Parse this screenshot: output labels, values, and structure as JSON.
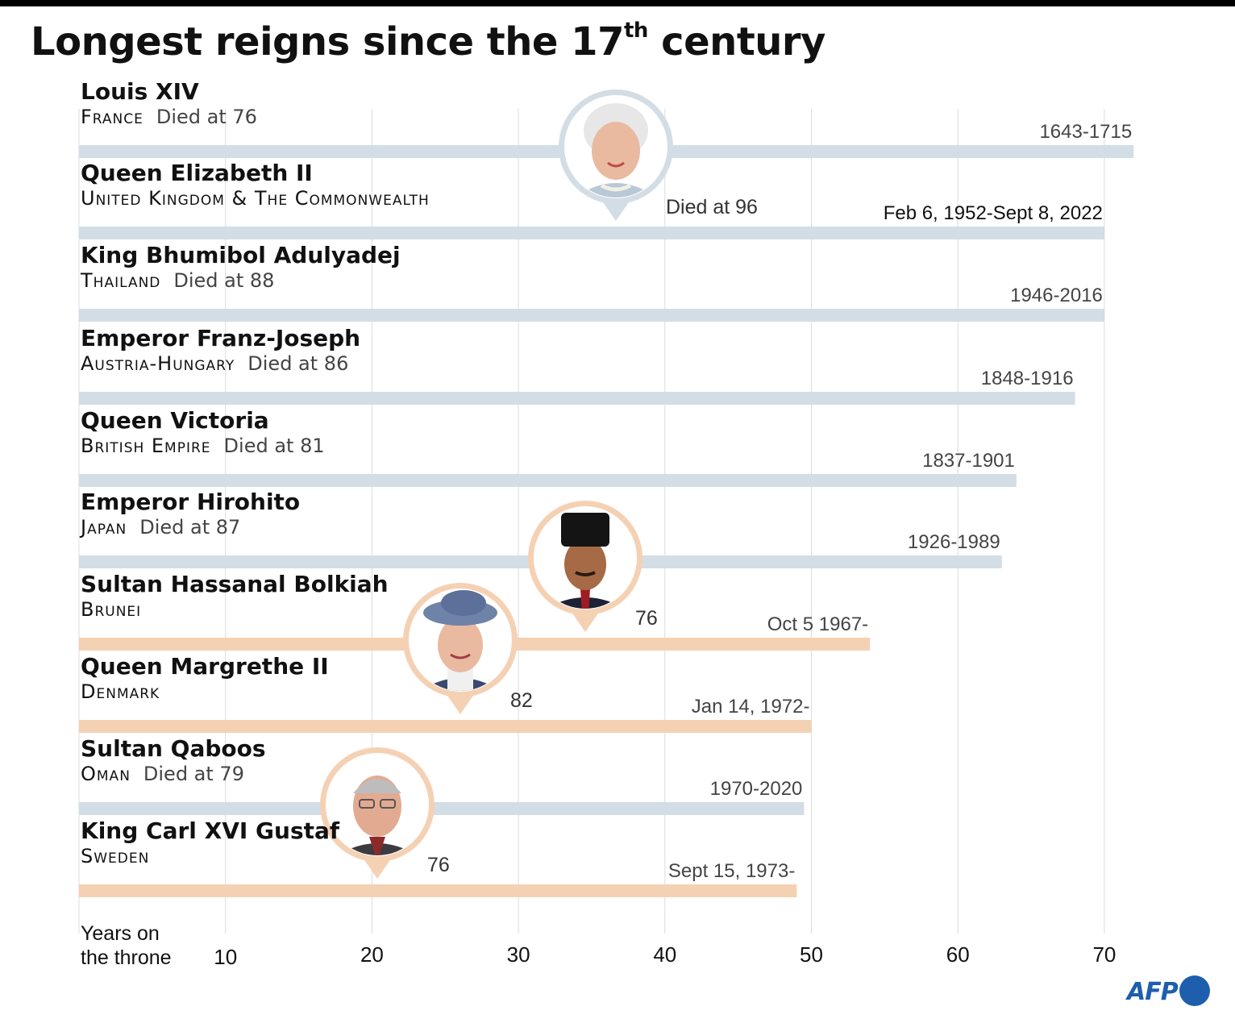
{
  "title": {
    "main": "Longest reigns since the 17",
    "sup": "th",
    "rest": " century"
  },
  "axis": {
    "label_line1": "Years on",
    "label_line2": "the throne"
  },
  "logo": "AFP",
  "colors": {
    "past": "#d3dde5",
    "current": "#f5d1b4",
    "grid": "#dcdcdc"
  },
  "chart_data": {
    "type": "bar",
    "orientation": "horizontal",
    "title": "Longest reigns since the 17th century",
    "xlabel": "Years on the throne",
    "xlim": [
      0,
      72
    ],
    "xticks": [
      10,
      20,
      30,
      40,
      50,
      60,
      70
    ],
    "grid": true,
    "bars": [
      {
        "name": "Louis XIV",
        "country": "France",
        "died": "Died at 76",
        "period": "1643-1715",
        "years": 72,
        "status": "past"
      },
      {
        "name": "Queen Elizabeth II",
        "country": "United Kingdom & The Commonwealth",
        "died": "",
        "period": "Feb 6, 1952-Sept 8, 2022",
        "years": 70,
        "status": "past",
        "portrait": {
          "caption": "Died at 96",
          "style": "elizabeth"
        }
      },
      {
        "name": "King Bhumibol Adulyadej",
        "country": "Thailand",
        "died": "Died at 88",
        "period": "1946-2016",
        "years": 70,
        "status": "past"
      },
      {
        "name": "Emperor Franz-Joseph",
        "country": "Austria-Hungary",
        "died": "Died at 86",
        "period": "1848-1916",
        "years": 68,
        "status": "past"
      },
      {
        "name": "Queen Victoria",
        "country": "British Empire",
        "died": "Died at 81",
        "period": "1837-1901",
        "years": 64,
        "status": "past"
      },
      {
        "name": "Emperor Hirohito",
        "country": "Japan",
        "died": "Died at 87",
        "period": "1926-1989",
        "years": 63,
        "status": "past"
      },
      {
        "name": "Sultan Hassanal Bolkiah",
        "country": "Brunei",
        "died": "",
        "period": "Oct 5 1967-",
        "years": 54,
        "status": "current",
        "portrait": {
          "caption": "76",
          "style": "bolkiah"
        }
      },
      {
        "name": "Queen Margrethe II",
        "country": "Denmark",
        "died": "",
        "period": "Jan 14, 1972-",
        "years": 50,
        "status": "current",
        "portrait": {
          "caption": "82",
          "style": "margrethe"
        }
      },
      {
        "name": "Sultan Qaboos",
        "country": "Oman",
        "died": "Died at 79",
        "period": "1970-2020",
        "years": 49.5,
        "status": "past"
      },
      {
        "name": "King Carl XVI Gustaf",
        "country": "Sweden",
        "died": "",
        "period": "Sept 15, 1973-",
        "years": 49,
        "status": "current",
        "portrait": {
          "caption": "76",
          "style": "carl"
        }
      }
    ]
  }
}
